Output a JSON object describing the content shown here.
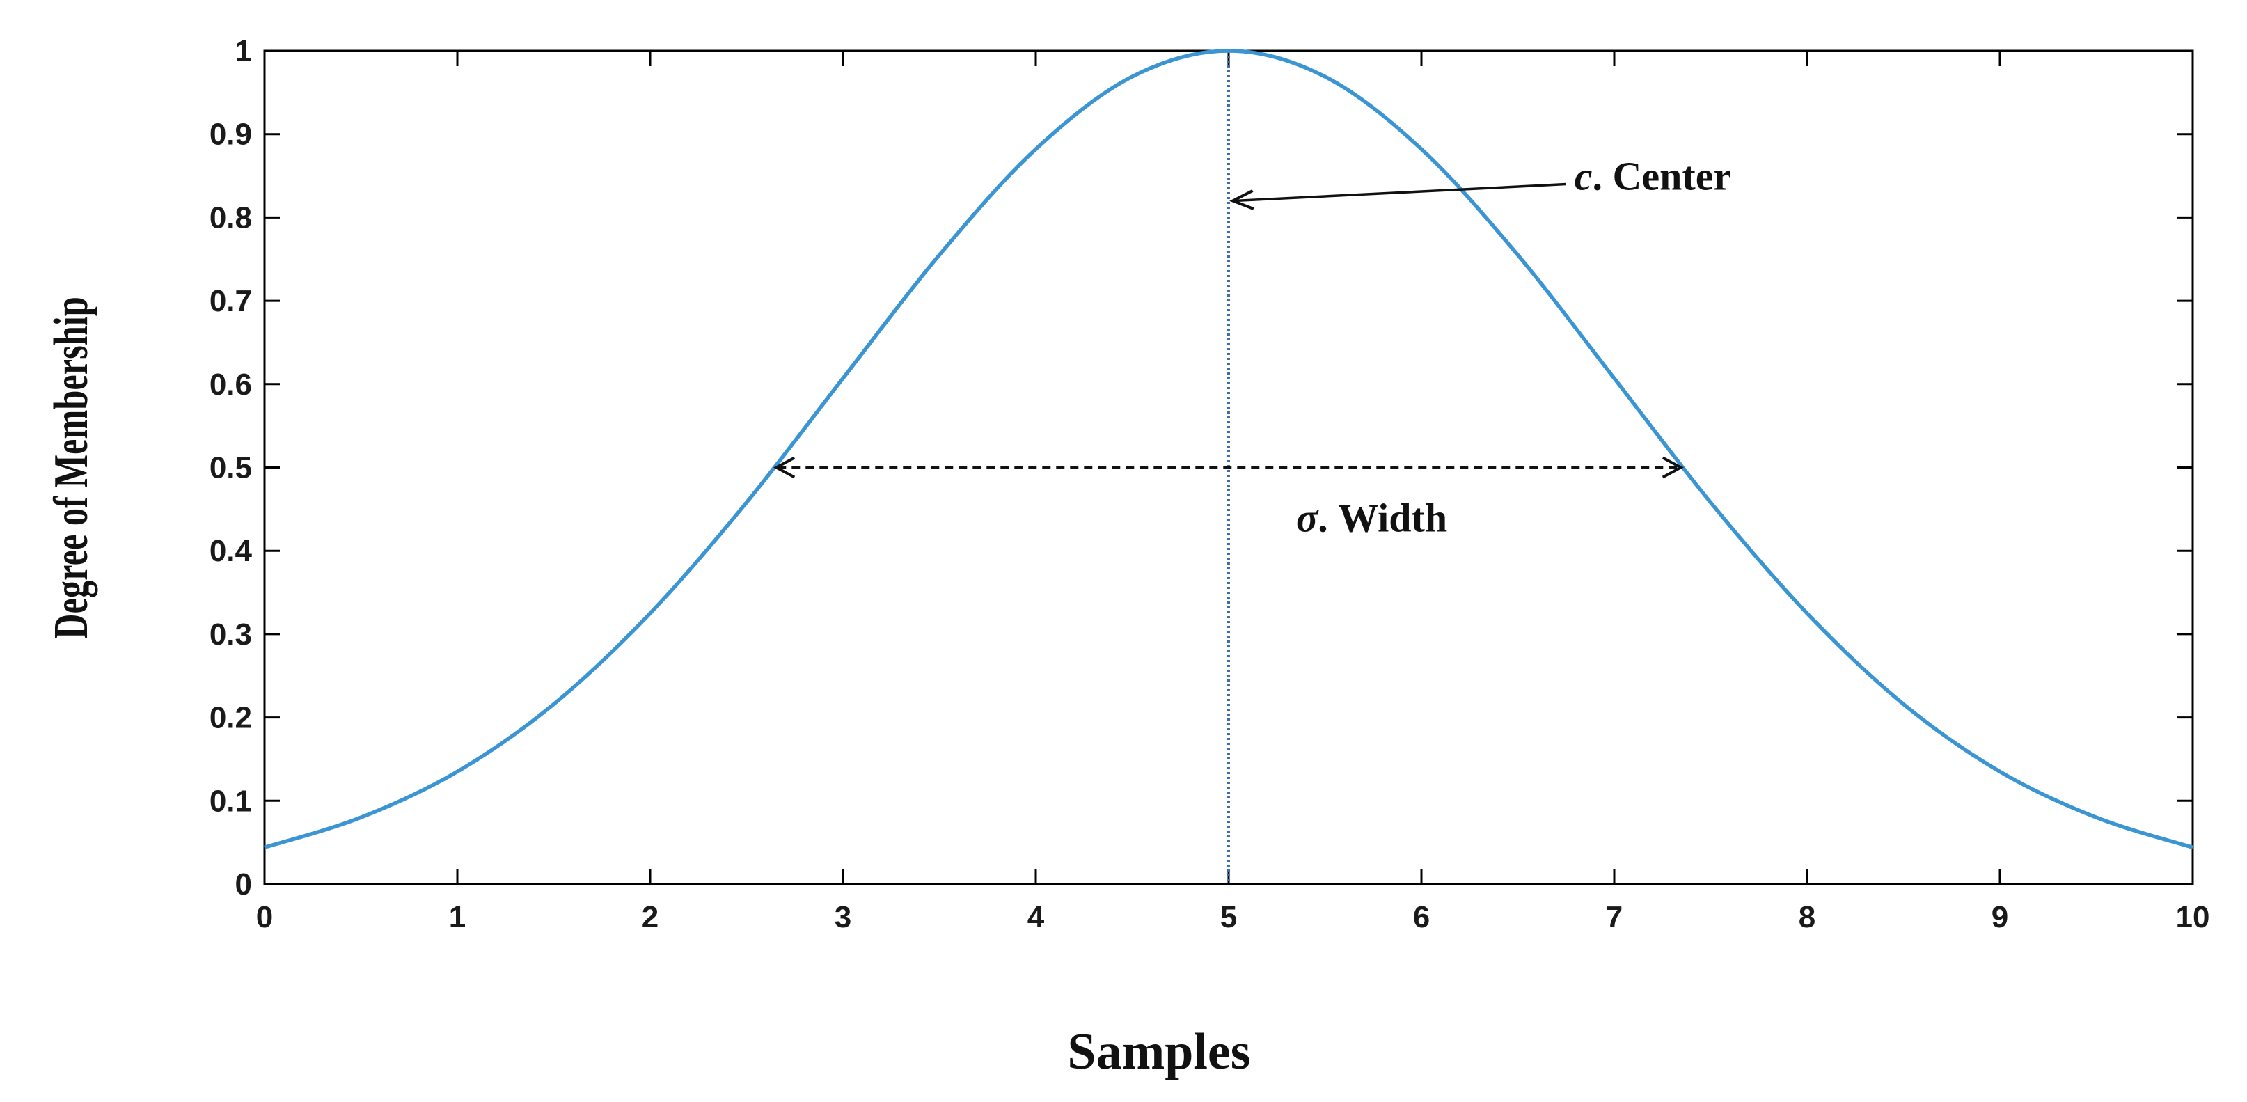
{
  "chart_data": {
    "type": "line",
    "title": "",
    "xlabel": "Samples",
    "ylabel": "Degree of Membership",
    "xlim": [
      0,
      10
    ],
    "ylim": [
      0,
      1
    ],
    "x_ticks": [
      "0",
      "1",
      "2",
      "3",
      "4",
      "5",
      "6",
      "7",
      "8",
      "9",
      "10"
    ],
    "y_ticks": [
      "0",
      "0.1",
      "0.2",
      "0.3",
      "0.4",
      "0.5",
      "0.6",
      "0.7",
      "0.8",
      "0.9",
      "1"
    ],
    "grid": false,
    "line_color": "#3b95d3",
    "series": [
      {
        "x": [
          0,
          0.5,
          1,
          1.5,
          2,
          2.5,
          3,
          3.5,
          4,
          4.5,
          5,
          5.5,
          6,
          6.5,
          7,
          7.5,
          8,
          8.5,
          9,
          9.5,
          10
        ],
        "values": [
          0.044,
          0.08,
          0.135,
          0.216,
          0.325,
          0.458,
          0.607,
          0.755,
          0.882,
          0.969,
          1.0,
          0.969,
          0.882,
          0.755,
          0.607,
          0.458,
          0.325,
          0.216,
          0.135,
          0.08,
          0.044
        ]
      }
    ],
    "center": {
      "x": 5,
      "label_symbol": "c",
      "label_text": ". Center",
      "arrow_to_y": 0.82,
      "label_y": 0.85
    },
    "width": {
      "x_left": 2.64,
      "x_right": 7.36,
      "y": 0.5,
      "label_symbol": "σ",
      "label_text": ". Width",
      "label_x": 5.35,
      "label_y": 0.44
    }
  }
}
